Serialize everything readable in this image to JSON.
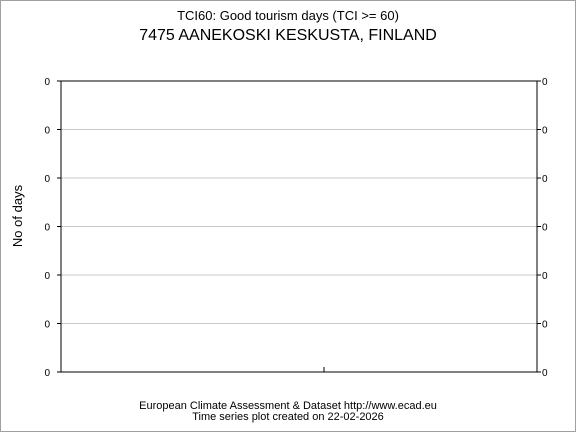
{
  "chart_data": {
    "type": "line",
    "title": "TCI60: Good tourism days (TCI >= 60)",
    "subtitle": "7475 AANEKOSKI KESKUSTA, FINLAND",
    "xlabel": "",
    "ylabel": "No of days",
    "y_ticks": [
      "0",
      "0",
      "0",
      "0",
      "0",
      "0",
      "0"
    ],
    "y_ticks_right": [
      "0",
      "0",
      "0",
      "0",
      "0",
      "0",
      "0"
    ],
    "x_ticks": [],
    "series": [],
    "grid": true,
    "legend": "none"
  },
  "footer": {
    "line1": "European Climate Assessment & Dataset  http://www.ecad.eu",
    "line2": "Time series plot created on 22-02-2026"
  },
  "colors": {
    "axis": "#000000",
    "grid": "#c8c8c8",
    "border": "#a0a0a0"
  }
}
